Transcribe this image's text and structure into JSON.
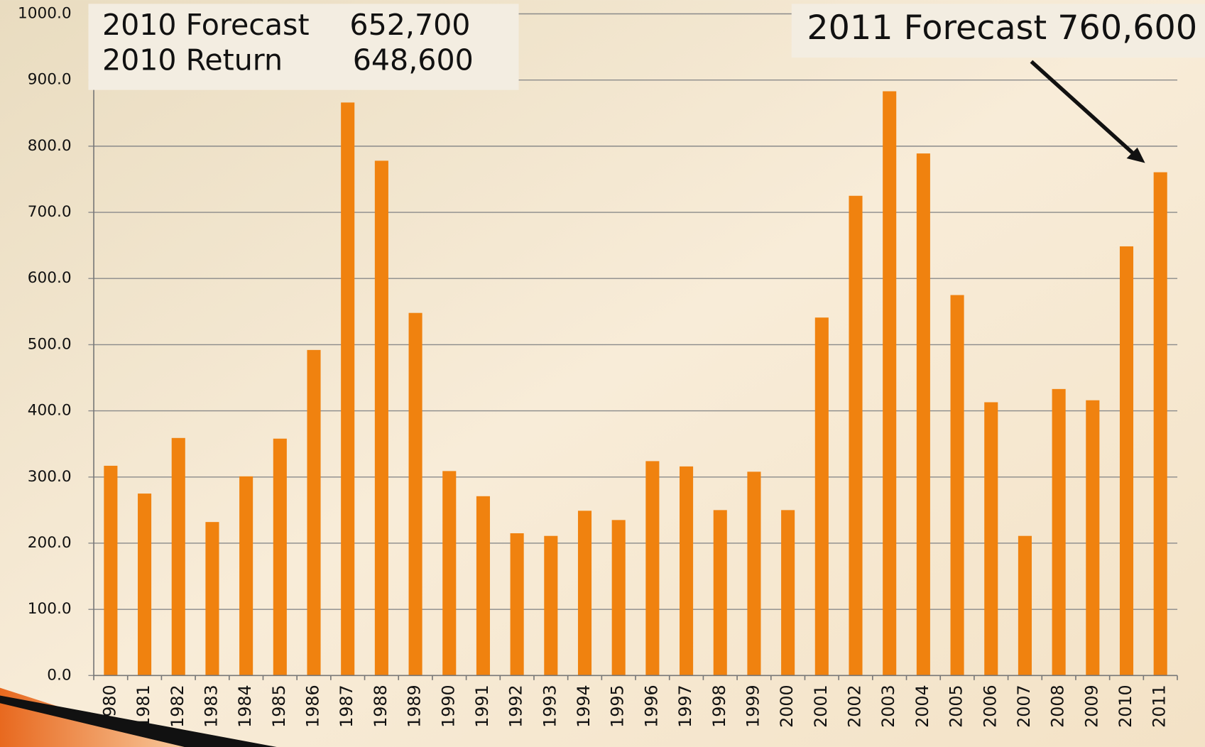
{
  "chart_data": {
    "type": "bar",
    "categories": [
      "1980",
      "1981",
      "1982",
      "1983",
      "1984",
      "1985",
      "1986",
      "1987",
      "1988",
      "1989",
      "1990",
      "1991",
      "1992",
      "1993",
      "1994",
      "1995",
      "1996",
      "1997",
      "1998",
      "1999",
      "2000",
      "2001",
      "2002",
      "2003",
      "2004",
      "2005",
      "2006",
      "2007",
      "2008",
      "2009",
      "2010",
      "2011"
    ],
    "values": [
      317,
      275,
      359,
      232,
      301,
      358,
      492,
      866,
      778,
      548,
      309,
      271,
      215,
      211,
      249,
      235,
      324,
      316,
      250,
      308,
      250,
      541,
      725,
      883,
      789,
      575,
      413,
      211,
      433,
      416,
      648.6,
      760.6
    ],
    "color": "#f0820f",
    "ylim": [
      0,
      1000
    ],
    "yticks": [
      {
        "value": 0,
        "label": "0.0"
      },
      {
        "value": 100,
        "label": "100.0"
      },
      {
        "value": 200,
        "label": "200.0"
      },
      {
        "value": 300,
        "label": "300.0"
      },
      {
        "value": 400,
        "label": "400.0"
      },
      {
        "value": 500,
        "label": "500.0"
      },
      {
        "value": 600,
        "label": "600.0"
      },
      {
        "value": 700,
        "label": "700.0"
      },
      {
        "value": 800,
        "label": "800.0"
      },
      {
        "value": 900,
        "label": "900.0"
      },
      {
        "value": 1000,
        "label": "1000.0"
      }
    ],
    "grid": true,
    "annotations": [
      "2010 Forecast",
      "652,700",
      "2010 Return",
      "648,600",
      "2011 Forecast 760,600"
    ]
  }
}
